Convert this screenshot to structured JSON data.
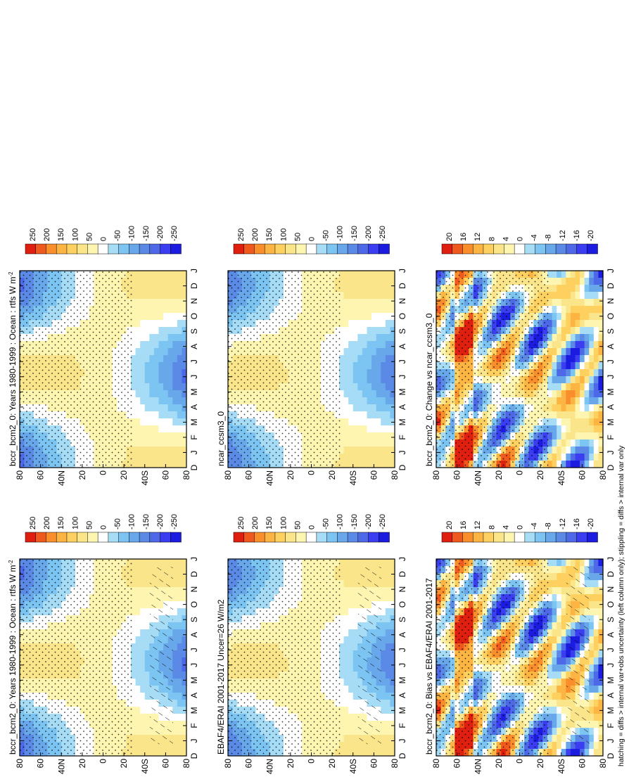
{
  "figure": {
    "footnote": "hatching = diffs > internal var+obs uncertainty (left column only); stippling = diffs > internal var only"
  },
  "chart_data": [
    {
      "type": "heatmap",
      "panel": "bottom-left",
      "title": "bccr_bcm2_0: Years 1980-1999 : Ocean : rtfs W m",
      "title_sup": "-2",
      "x": [
        "D",
        "J",
        "F",
        "M",
        "A",
        "M",
        "J",
        "J",
        "A",
        "S",
        "O",
        "N",
        "D",
        "J"
      ],
      "y_ticks": [
        "80",
        "60",
        "40N",
        "20",
        "0",
        "20",
        "40S",
        "60",
        "80"
      ],
      "colorbar": [
        "250",
        "200",
        "150",
        "100",
        "50",
        "0",
        "-50",
        "-100",
        "-150",
        "-200",
        "-250"
      ],
      "field": "annual-cycle",
      "amp": 160,
      "hatch": true
    },
    {
      "type": "heatmap",
      "panel": "middle-left",
      "title": "EBAF4/ERAI 2001-2017 Uncer=26 W/m2",
      "x": [
        "D",
        "J",
        "F",
        "M",
        "A",
        "M",
        "J",
        "J",
        "A",
        "S",
        "O",
        "N",
        "D",
        "J"
      ],
      "y_ticks": [
        "80",
        "60",
        "40N",
        "20",
        "0",
        "20",
        "40S",
        "60",
        "80"
      ],
      "colorbar": [
        "250",
        "200",
        "150",
        "100",
        "50",
        "0",
        "-50",
        "-100",
        "-150",
        "-200",
        "-250"
      ],
      "field": "annual-cycle",
      "amp": 150,
      "hatch": true
    },
    {
      "type": "heatmap",
      "panel": "top-left",
      "title": "bccr_bcm2_0: Bias vs EBAF4/ERAI 2001-2017",
      "x": [
        "D",
        "J",
        "F",
        "M",
        "A",
        "M",
        "J",
        "J",
        "A",
        "S",
        "O",
        "N",
        "D",
        "J"
      ],
      "y_ticks": [
        "80",
        "60",
        "40N",
        "20",
        "0",
        "20",
        "40S",
        "60",
        "80"
      ],
      "colorbar": [
        "20",
        "16",
        "12",
        "8",
        "4",
        "0",
        "-4",
        "-8",
        "-12",
        "-16",
        "-20"
      ],
      "field": "bias",
      "amp": 20,
      "hatch": true
    },
    {
      "type": "heatmap",
      "panel": "bottom-right",
      "title": "bccr_bcm2_0: Years 1980-1999 : Ocean : rtfs W m",
      "title_sup": "-2",
      "x": [
        "D",
        "J",
        "F",
        "M",
        "A",
        "M",
        "J",
        "J",
        "A",
        "S",
        "O",
        "N",
        "D",
        "J"
      ],
      "y_ticks": [
        "80",
        "60",
        "40N",
        "20",
        "0",
        "20",
        "40S",
        "60",
        "80"
      ],
      "colorbar": [
        "250",
        "200",
        "150",
        "100",
        "50",
        "0",
        "-50",
        "-100",
        "-150",
        "-200",
        "-250"
      ],
      "field": "annual-cycle",
      "amp": 160,
      "hatch": false
    },
    {
      "type": "heatmap",
      "panel": "middle-right",
      "title": "ncar_ccsm3_0",
      "x": [
        "D",
        "J",
        "F",
        "M",
        "A",
        "M",
        "J",
        "J",
        "A",
        "S",
        "O",
        "N",
        "D",
        "J"
      ],
      "y_ticks": [
        "80",
        "60",
        "40N",
        "20",
        "0",
        "20",
        "40S",
        "60",
        "80"
      ],
      "colorbar": [
        "250",
        "200",
        "150",
        "100",
        "50",
        "0",
        "-50",
        "-100",
        "-150",
        "-200",
        "-250"
      ],
      "field": "annual-cycle",
      "amp": 150,
      "hatch": false
    },
    {
      "type": "heatmap",
      "panel": "top-right",
      "title": "bccr_bcm2_0: Change vs ncar_ccsm3_0",
      "x": [
        "D",
        "J",
        "F",
        "M",
        "A",
        "M",
        "J",
        "J",
        "A",
        "S",
        "O",
        "N",
        "D",
        "J"
      ],
      "y_ticks": [
        "80",
        "60",
        "40N",
        "20",
        "0",
        "20",
        "40S",
        "60",
        "80"
      ],
      "colorbar": [
        "20",
        "16",
        "12",
        "8",
        "4",
        "0",
        "-4",
        "-8",
        "-12",
        "-16",
        "-20"
      ],
      "field": "bias",
      "amp": 20,
      "hatch": false
    }
  ]
}
